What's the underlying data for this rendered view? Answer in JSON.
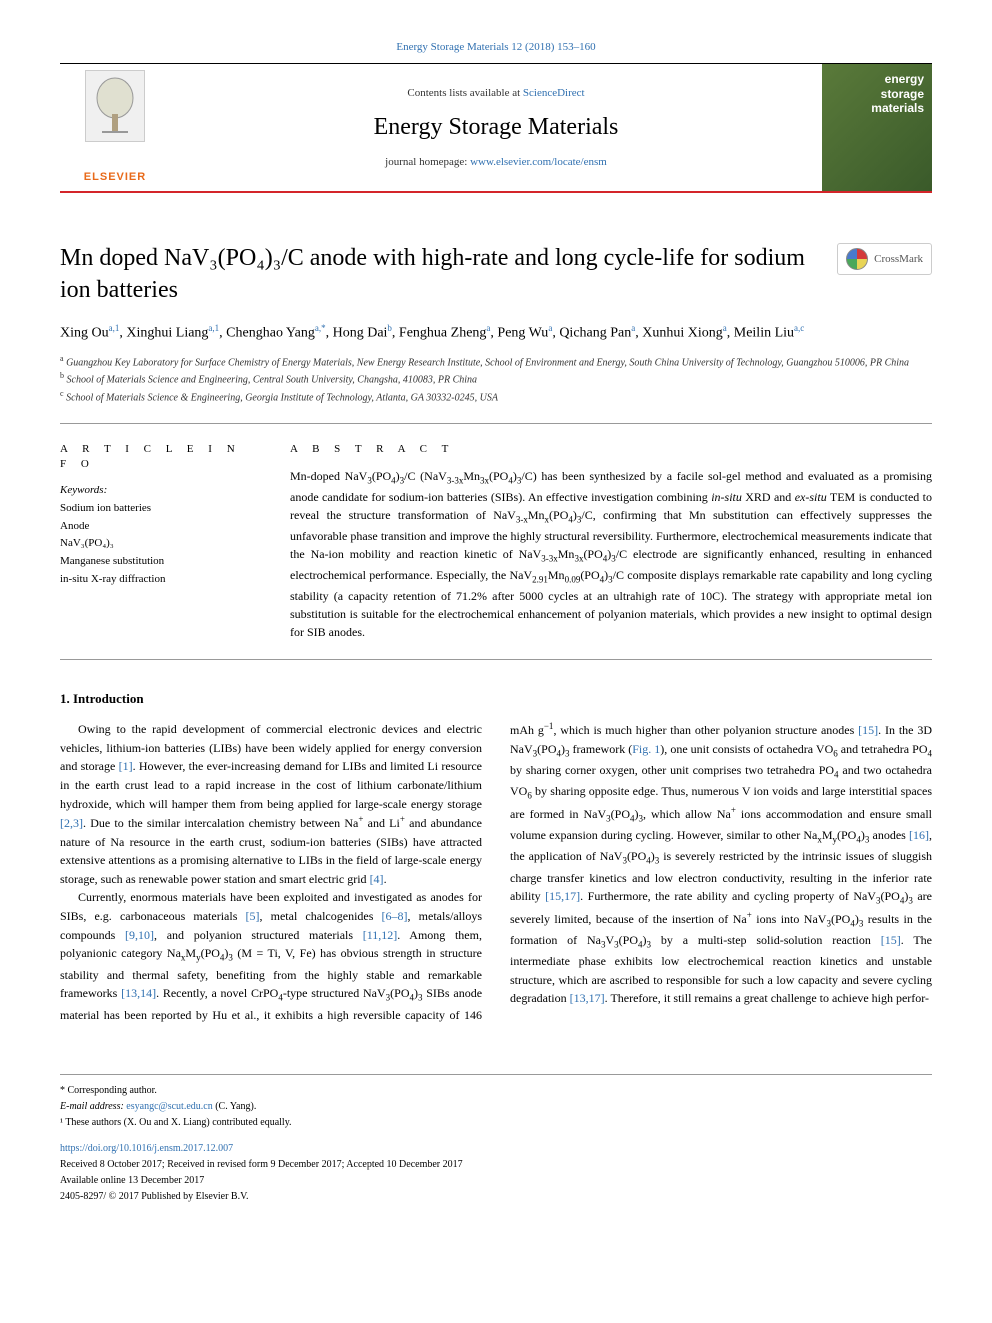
{
  "topLink": "Energy Storage Materials 12 (2018) 153–160",
  "masthead": {
    "contentsPrefix": "Contents lists available at ",
    "contentsLink": "ScienceDirect",
    "journal": "Energy Storage Materials",
    "homepagePrefix": "journal homepage: ",
    "homepageUrl": "www.elsevier.com/locate/ensm",
    "elsevier": "ELSEVIER",
    "coverWords": [
      "energy",
      "storage",
      "materials"
    ]
  },
  "crossmark": "CrossMark",
  "title": "Mn doped NaV₃(PO₄)₃/C anode with high-rate and long cycle-life for sodium ion batteries",
  "authorsHtml": "Xing Ou<sup>a,1</sup>, Xinghui Liang<sup>a,1</sup>, Chenghao Yang<sup>a,*</sup>, Hong Dai<sup>b</sup>, Fenghua Zheng<sup>a</sup>, Peng Wu<sup>a</sup>, Qichang Pan<sup>a</sup>, Xunhui Xiong<sup>a</sup>, Meilin Liu<sup>a,c</sup>",
  "affiliations": [
    {
      "sup": "a",
      "text": "Guangzhou Key Laboratory for Surface Chemistry of Energy Materials, New Energy Research Institute, School of Environment and Energy, South China University of Technology, Guangzhou 510006, PR China"
    },
    {
      "sup": "b",
      "text": "School of Materials Science and Engineering, Central South University, Changsha, 410083, PR China"
    },
    {
      "sup": "c",
      "text": "School of Materials Science & Engineering, Georgia Institute of Technology, Atlanta, GA 30332-0245, USA"
    }
  ],
  "articleInfo": {
    "head": "A R T I C L E   I N F O",
    "keywordsLabel": "Keywords:",
    "keywords": "Sodium ion batteries\nAnode\nNaV₃(PO₄)₃\nManganese substitution\nin-situ X-ray diffraction"
  },
  "abstract": {
    "head": "A B S T R A C T",
    "textHtml": "Mn-doped NaV<sub>3</sub>(PO<sub>4</sub>)<sub>3</sub>/C (NaV<sub>3-3x</sub>Mn<sub>3x</sub>(PO<sub>4</sub>)<sub>3</sub>/C) has been synthesized by a facile sol-gel method and evaluated as a promising anode candidate for sodium-ion batteries (SIBs). An effective investigation combining <span class='ital'>in-situ</span> XRD and <span class='ital'>ex-situ</span> TEM is conducted to reveal the structure transformation of NaV<sub>3-x</sub>Mn<sub>x</sub>(PO<sub>4</sub>)<sub>3</sub>/C, confirming that Mn substitution can effectively suppresses the unfavorable phase transition and improve the highly structural reversibility. Furthermore, electrochemical measurements indicate that the Na-ion mobility and reaction kinetic of NaV<sub>3-3x</sub>Mn<sub>3x</sub>(PO<sub>4</sub>)<sub>3</sub>/C electrode are significantly enhanced, resulting in enhanced electrochemical performance. Especially, the NaV<sub>2.91</sub>Mn<sub>0.09</sub>(PO<sub>4</sub>)<sub>3</sub>/C composite displays remarkable rate capability and long cycling stability (a capacity retention of 71.2% after 5000 cycles at an ultrahigh rate of 10C). The strategy with appropriate metal ion substitution is suitable for the electrochemical enhancement of polyanion materials, which provides a new insight to optimal design for SIB anodes."
  },
  "body": {
    "head": "1. Introduction",
    "paragraphsHtml": [
      "Owing to the rapid development of commercial electronic devices and electric vehicles, lithium-ion batteries (LIBs) have been widely applied for energy conversion and storage <a class='link'>[1]</a>. However, the ever-increasing demand for LIBs and limited Li resource in the earth crust lead to a rapid increase in the cost of lithium carbonate/lithium hydroxide, which will hamper them from being applied for large-scale energy storage <a class='link'>[2,3]</a>. Due to the similar intercalation chemistry between Na<sup>+</sup> and Li<sup>+</sup> and abundance nature of Na resource in the earth crust, sodium-ion batteries (SIBs) have attracted extensive attentions as a promising alternative to LIBs in the field of large-scale energy storage, such as renewable power station and smart electric grid <a class='link'>[4]</a>.",
      "Currently, enormous materials have been exploited and investigated as anodes for SIBs, e.g. carbonaceous materials <a class='link'>[5]</a>, metal chalcogenides <a class='link'>[6–8]</a>, metals/alloys compounds <a class='link'>[9,10]</a>, and polyanion structured materials <a class='link'>[11,12]</a>. Among them, polyanionic category Na<sub>x</sub>M<sub>y</sub>(PO<sub>4</sub>)<sub>3</sub> (M = Ti, V, Fe) has obvious strength in structure stability and thermal safety, benefiting from the highly stable and remarkable frameworks <a class='link'>[13,14]</a>. Recently, a novel CrPO<sub>4</sub>-type structured NaV<sub>3</sub>(PO<sub>4</sub>)<sub>3</sub> SIBs anode material has been reported by Hu et al., it exhibits a high reversible capacity of 146 mAh g<sup>−1</sup>, which is much higher than other polyanion structure anodes <a class='link'>[15]</a>. In the 3D NaV<sub>3</sub>(PO<sub>4</sub>)<sub>3</sub> framework (<a class='link'>Fig. 1</a>), one unit consists of octahedra VO<sub>6</sub> and tetrahedra PO<sub>4</sub> by sharing corner oxygen, other unit comprises two tetrahedra PO<sub>4</sub> and two octahedra VO<sub>6</sub> by sharing opposite edge. Thus, numerous V ion voids and large interstitial spaces are formed in NaV<sub>3</sub>(PO<sub>4</sub>)<sub>3</sub>, which allow Na<sup>+</sup> ions accommodation and ensure small volume expansion during cycling. However, similar to other Na<sub>x</sub>M<sub>y</sub>(PO<sub>4</sub>)<sub>3</sub> anodes <a class='link'>[16]</a>, the application of NaV<sub>3</sub>(PO<sub>4</sub>)<sub>3</sub> is severely restricted by the intrinsic issues of sluggish charge transfer kinetics and low electron conductivity, resulting in the inferior rate ability <a class='link'>[15,17]</a>. Furthermore, the rate ability and cycling property of NaV<sub>3</sub>(PO<sub>4</sub>)<sub>3</sub> are severely limited, because of the insertion of Na<sup>+</sup> ions into NaV<sub>3</sub>(PO<sub>4</sub>)<sub>3</sub> results in the formation of Na<sub>3</sub>V<sub>3</sub>(PO<sub>4</sub>)<sub>3</sub> by a multi-step solid-solution reaction <a class='link'>[15]</a>. The intermediate phase exhibits low electrochemical reaction kinetics and unstable structure, which are ascribed to responsible for such a low capacity and severe cycling degradation <a class='link'>[13,17]</a>. Therefore, it still remains a great challenge to achieve high perfor-"
    ]
  },
  "footer": {
    "corr": "* Corresponding author.",
    "emailLabel": "E-mail address: ",
    "email": "esyangc@scut.edu.cn",
    "emailSuffix": " (C. Yang).",
    "contrib": "¹ These authors (X. Ou and X. Liang) contributed equally.",
    "doi": "https://doi.org/10.1016/j.ensm.2017.12.007",
    "received": "Received 8 October 2017; Received in revised form 9 December 2017; Accepted 10 December 2017",
    "online": "Available online 13 December 2017",
    "copyright": "2405-8297/ © 2017 Published by Elsevier B.V."
  },
  "colors": {
    "link": "#3070b0",
    "ruleRed": "#d4252a",
    "elsevierOrange": "#e86a1a",
    "coverGreen1": "#5a7a3a",
    "coverGreen2": "#3a5a2a"
  }
}
